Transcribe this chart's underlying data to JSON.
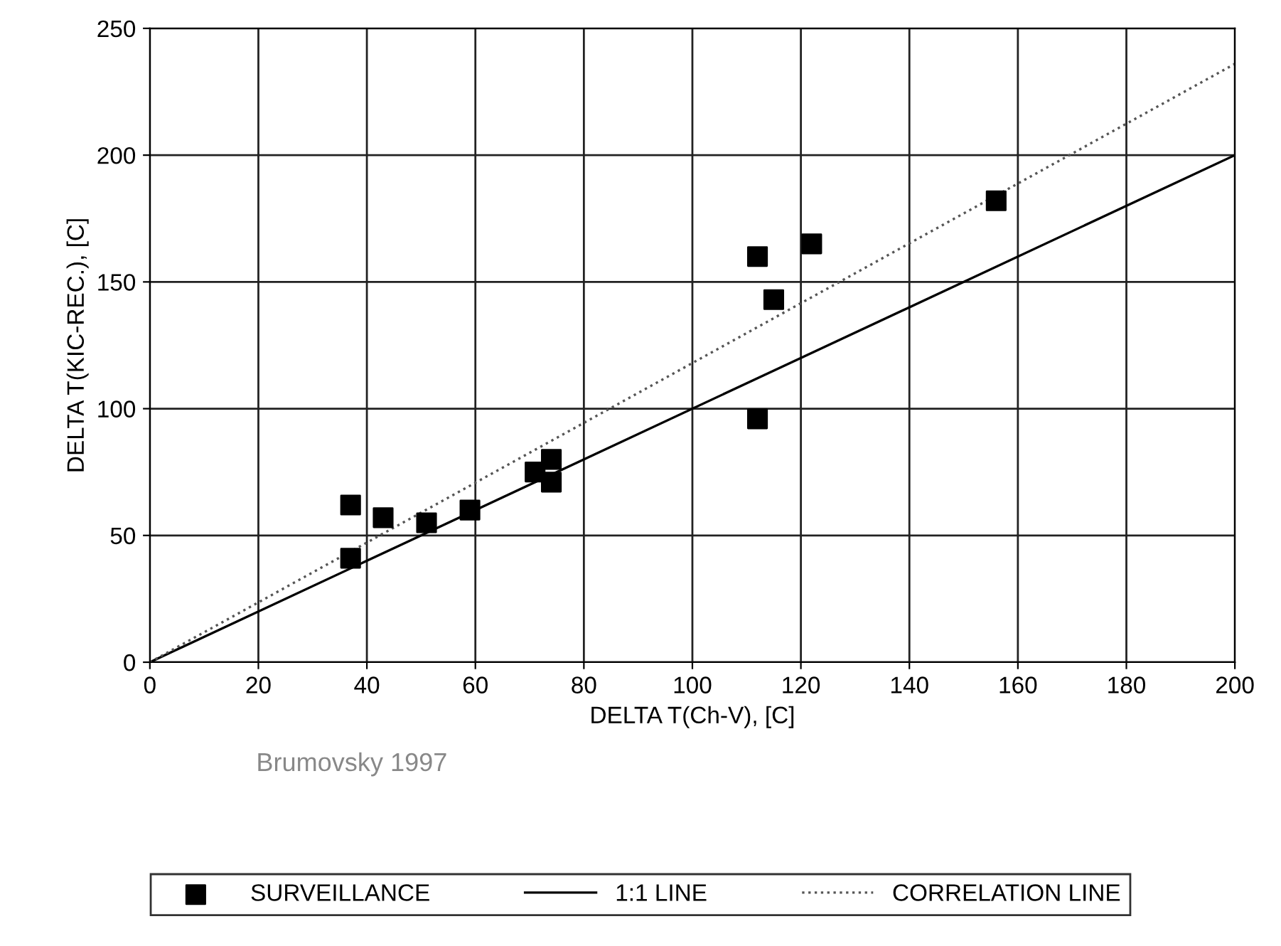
{
  "chart_data": {
    "type": "scatter",
    "xlabel": "DELTA T(Ch-V), [C]",
    "ylabel": "DELTA T(KIC-REC.), [C]",
    "xlim": [
      0,
      200
    ],
    "ylim": [
      0,
      250
    ],
    "xticks": [
      0,
      20,
      40,
      60,
      80,
      100,
      120,
      140,
      160,
      180,
      200
    ],
    "yticks": [
      0,
      50,
      100,
      150,
      200,
      250
    ],
    "grid": true,
    "legend": "bottom",
    "annotations": [
      "Brumovsky 1997"
    ],
    "series": [
      {
        "name": "SURVEILLANCE",
        "marker": "square",
        "color": "#000000",
        "x": [
          37,
          37,
          43,
          51,
          59,
          71,
          74,
          74,
          112,
          112,
          115,
          122,
          156
        ],
        "values": [
          62,
          41,
          57,
          55,
          60,
          75,
          80,
          71,
          160,
          96,
          143,
          165,
          182
        ]
      },
      {
        "name": "1:1 LINE",
        "type": "line",
        "line_style": "solid",
        "marker": "none",
        "color": "#000000",
        "x": [
          0,
          200
        ],
        "values": [
          0,
          200
        ]
      },
      {
        "name": "CORRELATION LINE",
        "type": "line",
        "line_style": "dotted",
        "marker": "none",
        "color": "#555555",
        "x": [
          0,
          200
        ],
        "values": [
          0,
          236
        ]
      }
    ]
  }
}
